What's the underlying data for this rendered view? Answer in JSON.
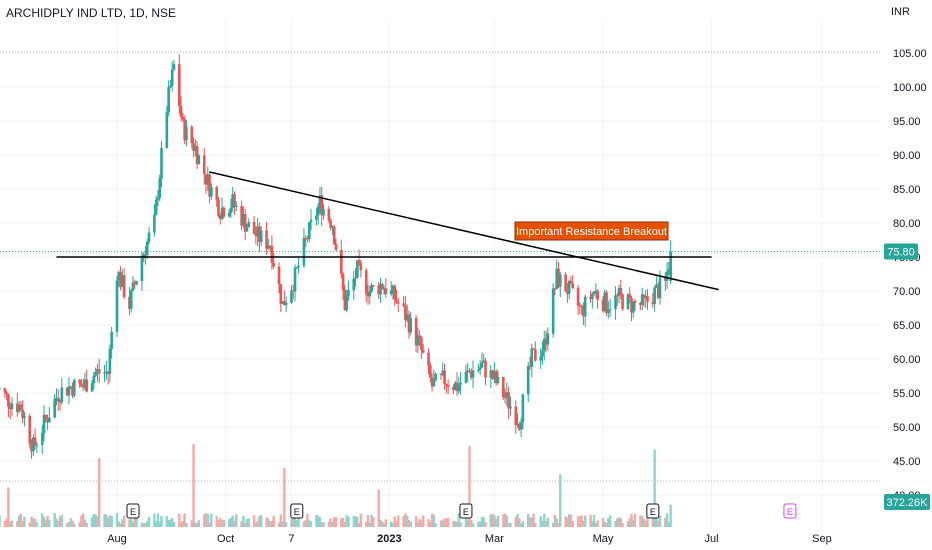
{
  "chart_title": "ARCHIDPLY IND LTD, 1D, NSE",
  "currency": "INR",
  "colors": {
    "up": "#26a69a",
    "down": "#ef5350",
    "volume_up": "#8fd4cd",
    "volume_down": "#f7a9a7",
    "line": "#000000",
    "annotation_bg": "#e65100",
    "last_price_bg": "#26a69a",
    "grid": "#f0f3fa"
  },
  "chart_data": {
    "type": "candlestick",
    "symbol": "ARCHIDPLY IND LTD",
    "interval": "1D",
    "exchange": "NSE",
    "last_price": "75.80",
    "last_volume": "372.26K",
    "y_ticks": [
      "105.00",
      "100.00",
      "95.00",
      "90.00",
      "85.00",
      "80.00",
      "75.00",
      "70.00",
      "65.00",
      "60.00",
      "55.00",
      "50.00",
      "45.00",
      "40.00"
    ],
    "ylim": [
      40,
      107
    ],
    "x_ticks": [
      "Aug",
      "Oct",
      "7",
      "2023",
      "Mar",
      "May",
      "Jul",
      "Sep"
    ],
    "earnings_markers": [
      "E",
      "E",
      "E",
      "E",
      "E"
    ],
    "trendlines": [
      {
        "name": "Horizontal support/resistance",
        "from": {
          "date": "2022-06-28",
          "price": 75
        },
        "to": {
          "date": "2023-07-01",
          "price": 75
        }
      },
      {
        "name": "Descending resistance",
        "from": {
          "date": "2022-09-22",
          "price": 87.5
        },
        "to": {
          "date": "2023-07-05",
          "price": 70.2
        }
      }
    ],
    "annotation": "Important Resistance Breakout",
    "price_path": [
      {
        "date": "2022-05-25",
        "price": 56
      },
      {
        "date": "2022-06-01",
        "price": 54
      },
      {
        "date": "2022-06-08",
        "price": 53
      },
      {
        "date": "2022-06-15",
        "price": 47
      },
      {
        "date": "2022-06-22",
        "price": 51
      },
      {
        "date": "2022-06-29",
        "price": 55
      },
      {
        "date": "2022-07-06",
        "price": 56
      },
      {
        "date": "2022-07-13",
        "price": 56
      },
      {
        "date": "2022-07-20",
        "price": 58
      },
      {
        "date": "2022-07-27",
        "price": 58
      },
      {
        "date": "2022-08-01",
        "price": 73
      },
      {
        "date": "2022-08-08",
        "price": 68
      },
      {
        "date": "2022-08-15",
        "price": 75
      },
      {
        "date": "2022-08-22",
        "price": 80
      },
      {
        "date": "2022-08-29",
        "price": 97
      },
      {
        "date": "2022-09-02",
        "price": 103
      },
      {
        "date": "2022-09-07",
        "price": 94
      },
      {
        "date": "2022-09-14",
        "price": 91
      },
      {
        "date": "2022-09-21",
        "price": 86
      },
      {
        "date": "2022-09-28",
        "price": 82
      },
      {
        "date": "2022-10-05",
        "price": 83
      },
      {
        "date": "2022-10-12",
        "price": 80
      },
      {
        "date": "2022-10-19",
        "price": 78
      },
      {
        "date": "2022-10-26",
        "price": 77
      },
      {
        "date": "2022-11-02",
        "price": 68
      },
      {
        "date": "2022-11-09",
        "price": 72
      },
      {
        "date": "2022-11-16",
        "price": 78
      },
      {
        "date": "2022-11-23",
        "price": 83
      },
      {
        "date": "2022-11-30",
        "price": 80
      },
      {
        "date": "2022-12-07",
        "price": 68
      },
      {
        "date": "2022-12-14",
        "price": 73
      },
      {
        "date": "2022-12-21",
        "price": 70
      },
      {
        "date": "2022-12-28",
        "price": 71
      },
      {
        "date": "2023-01-04",
        "price": 69
      },
      {
        "date": "2023-01-11",
        "price": 66
      },
      {
        "date": "2023-01-18",
        "price": 62
      },
      {
        "date": "2023-01-25",
        "price": 56
      },
      {
        "date": "2023-02-01",
        "price": 57
      },
      {
        "date": "2023-02-08",
        "price": 56
      },
      {
        "date": "2023-02-15",
        "price": 58
      },
      {
        "date": "2023-02-22",
        "price": 59
      },
      {
        "date": "2023-03-01",
        "price": 57
      },
      {
        "date": "2023-03-08",
        "price": 54
      },
      {
        "date": "2023-03-15",
        "price": 51
      },
      {
        "date": "2023-03-22",
        "price": 60
      },
      {
        "date": "2023-03-29",
        "price": 62
      },
      {
        "date": "2023-04-05",
        "price": 72
      },
      {
        "date": "2023-04-12",
        "price": 70
      },
      {
        "date": "2023-04-19",
        "price": 67
      },
      {
        "date": "2023-04-26",
        "price": 70
      },
      {
        "date": "2023-05-03",
        "price": 68
      },
      {
        "date": "2023-05-10",
        "price": 69
      },
      {
        "date": "2023-05-17",
        "price": 68
      },
      {
        "date": "2023-05-24",
        "price": 68
      },
      {
        "date": "2023-05-31",
        "price": 70
      },
      {
        "date": "2023-06-05",
        "price": 71
      },
      {
        "date": "2023-06-08",
        "price": 75.8
      }
    ]
  }
}
